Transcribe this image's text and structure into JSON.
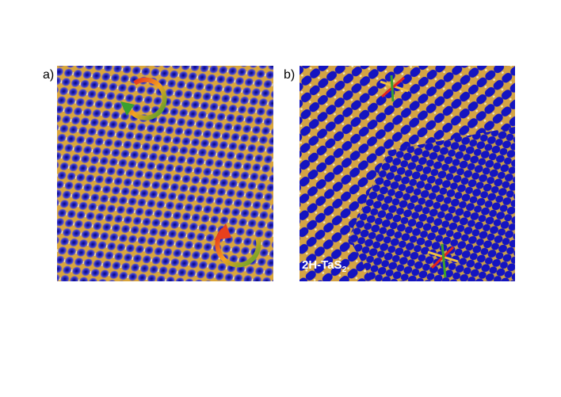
{
  "panels": [
    {
      "label": "a)"
    },
    {
      "label": "b)",
      "material": {
        "text": "2H-TaS",
        "subscript": "2"
      }
    }
  ]
}
